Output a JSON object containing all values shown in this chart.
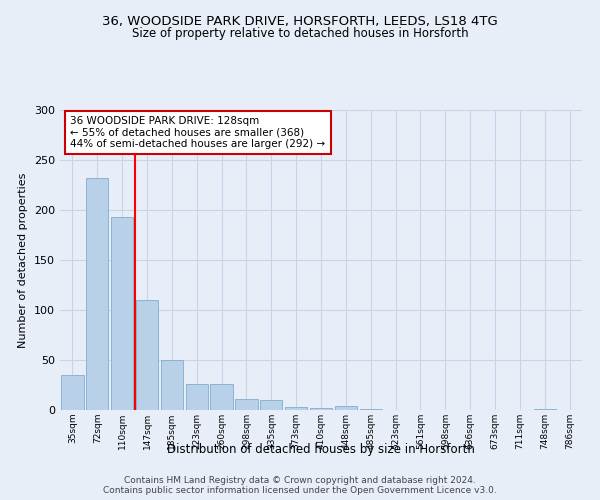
{
  "title1": "36, WOODSIDE PARK DRIVE, HORSFORTH, LEEDS, LS18 4TG",
  "title2": "Size of property relative to detached houses in Horsforth",
  "xlabel": "Distribution of detached houses by size in Horsforth",
  "ylabel": "Number of detached properties",
  "bar_labels": [
    "35sqm",
    "72sqm",
    "110sqm",
    "147sqm",
    "185sqm",
    "223sqm",
    "260sqm",
    "298sqm",
    "335sqm",
    "373sqm",
    "410sqm",
    "448sqm",
    "485sqm",
    "523sqm",
    "561sqm",
    "598sqm",
    "636sqm",
    "673sqm",
    "711sqm",
    "748sqm",
    "786sqm"
  ],
  "bar_values": [
    35,
    232,
    193,
    110,
    50,
    26,
    26,
    11,
    10,
    3,
    2,
    4,
    1,
    0,
    0,
    0,
    0,
    0,
    0,
    1,
    0
  ],
  "bar_color": "#b8d0e8",
  "bar_edge_color": "#8ab4d4",
  "red_line_x": 2.5,
  "annotation_text": "36 WOODSIDE PARK DRIVE: 128sqm\n← 55% of detached houses are smaller (368)\n44% of semi-detached houses are larger (292) →",
  "annotation_box_color": "#ffffff",
  "annotation_box_edge": "#cc0000",
  "ylim": [
    0,
    300
  ],
  "yticks": [
    0,
    50,
    100,
    150,
    200,
    250,
    300
  ],
  "footer1": "Contains HM Land Registry data © Crown copyright and database right 2024.",
  "footer2": "Contains public sector information licensed under the Open Government Licence v3.0.",
  "bg_color": "#e8eef8",
  "grid_color": "#c8d4e8"
}
